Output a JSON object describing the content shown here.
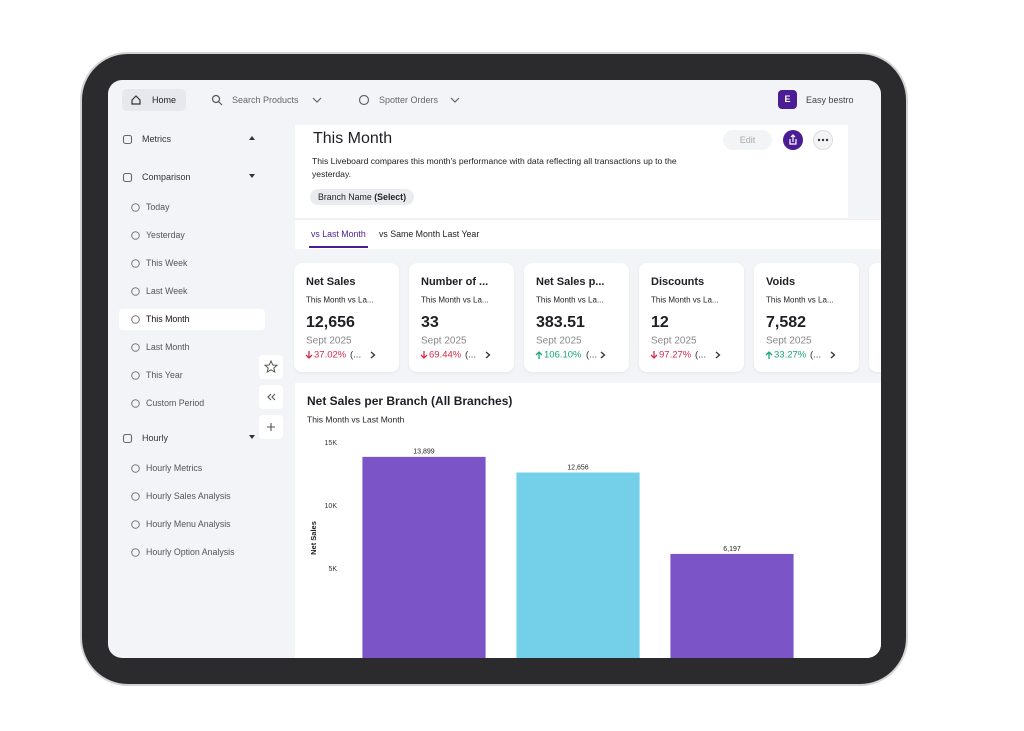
{
  "topbar": {
    "home": "Home",
    "search": "Search Products",
    "spotter": "Spotter Orders",
    "avatar": "E",
    "account": "Easy bestro"
  },
  "sidebar": {
    "sections": [
      {
        "label": "Metrics",
        "items": []
      },
      {
        "label": "Comparison",
        "items": [
          "Today",
          "Yesterday",
          "This Week",
          "Last Week",
          "This Month",
          "Last Month",
          "This Year",
          "Custom Period"
        ],
        "active": 4
      },
      {
        "label": "Hourly",
        "items": [
          "Hourly Metrics",
          "Hourly Sales Analysis",
          "Hourly Menu Analysis",
          "Hourly Option Analysis"
        ]
      }
    ]
  },
  "header": {
    "title": "This Month",
    "description": "This Liveboard compares this month's performance with data reflecting all transactions up to the yesterday.",
    "edit": "Edit",
    "filter_label": "Branch Name",
    "filter_value": "(Select)"
  },
  "tabs": {
    "items": [
      "vs Last Month",
      "vs Same Month Last Year"
    ],
    "active": 0
  },
  "kpis": [
    {
      "title": "Net Sales",
      "subtitle": "This Month vs La...",
      "value": "12,656",
      "period": "Sept 2025",
      "change": "37.02%",
      "direction": "down",
      "note": "(..."
    },
    {
      "title": "Number of ...",
      "subtitle": "This Month vs La...",
      "value": "33",
      "period": "Sept 2025",
      "change": "69.44%",
      "direction": "down",
      "note": "(..."
    },
    {
      "title": "Net Sales p...",
      "subtitle": "This Month vs La...",
      "value": "383.51",
      "period": "Sept 2025",
      "change": "106.10%",
      "direction": "up",
      "note": "(..."
    },
    {
      "title": "Discounts",
      "subtitle": "This Month vs La...",
      "value": "12",
      "period": "Sept 2025",
      "change": "97.27%",
      "direction": "down",
      "note": "(..."
    },
    {
      "title": "Voids",
      "subtitle": "This Month vs La...",
      "value": "7,582",
      "period": "Sept 2025",
      "change": "33.27%",
      "direction": "up",
      "note": "(..."
    }
  ],
  "chart_data": {
    "type": "bar",
    "title": "Net Sales per Branch (All Branches)",
    "subtitle": "This Month vs Last Month",
    "y_label": "Net Sales",
    "categories": [
      null,
      null,
      null
    ],
    "values": [
      13899,
      12656,
      6197
    ],
    "value_labels": [
      "13,899",
      "12,656",
      "6,197"
    ],
    "colors": [
      "#7b55c7",
      "#74d0e8",
      "#7b55c7"
    ],
    "ylim": [
      0,
      15000
    ],
    "yticks": [
      {
        "value": 5000,
        "label": "5K"
      },
      {
        "value": 10000,
        "label": "10K"
      },
      {
        "value": 15000,
        "label": "15K"
      }
    ]
  }
}
